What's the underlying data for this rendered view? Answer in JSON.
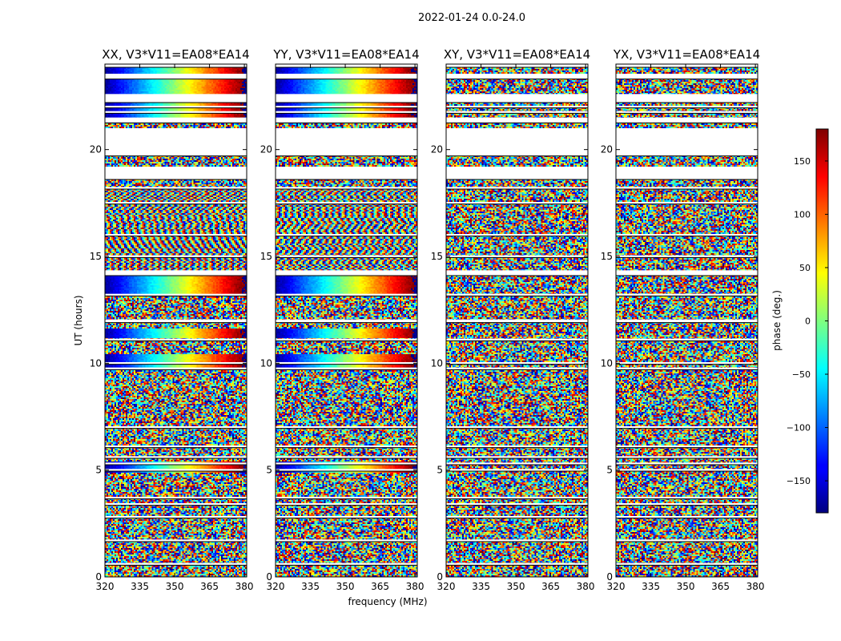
{
  "chart_data": {
    "type": "heatmap",
    "suptitle": "2022-01-24 0.0-24.0",
    "xlabel": "frequency (MHz)",
    "ylabel": "UT (hours)",
    "xlim": [
      320,
      381
    ],
    "ylim": [
      0,
      24
    ],
    "xticks": [
      320,
      335,
      350,
      365,
      380
    ],
    "yticks": [
      0,
      5,
      10,
      15,
      20
    ],
    "panels": [
      {
        "title": "XX, V3*V11=EA08*EA14",
        "correlation": "XX",
        "coherent_phase": true
      },
      {
        "title": "YY, V3*V11=EA08*EA14",
        "correlation": "YY",
        "coherent_phase": true
      },
      {
        "title": "XY, V3*V11=EA08*EA14",
        "correlation": "XY",
        "coherent_phase": false
      },
      {
        "title": "YX, V3*V11=EA08*EA14",
        "correlation": "YX",
        "coherent_phase": false
      }
    ],
    "flagged_ut_ranges": [
      [
        24.0,
        23.85
      ],
      [
        23.55,
        23.3
      ],
      [
        22.6,
        22.2
      ],
      [
        22.05,
        21.95
      ],
      [
        21.8,
        21.7
      ],
      [
        21.5,
        21.25
      ],
      [
        21.0,
        19.7
      ],
      [
        19.2,
        18.6
      ],
      [
        18.25,
        18.15
      ],
      [
        17.55,
        17.45
      ],
      [
        16.05,
        15.95
      ],
      [
        15.05,
        14.95
      ],
      [
        14.35,
        14.1
      ],
      [
        13.25,
        13.15
      ],
      [
        12.05,
        11.9
      ],
      [
        11.15,
        11.05
      ],
      [
        10.05,
        9.95
      ],
      [
        9.8,
        9.7
      ],
      [
        7.05,
        6.95
      ],
      [
        6.15,
        6.05
      ],
      [
        5.65,
        5.55
      ],
      [
        5.35,
        5.25
      ],
      [
        5.05,
        4.95
      ],
      [
        3.75,
        3.65
      ],
      [
        3.45,
        3.35
      ],
      [
        2.85,
        2.75
      ],
      [
        1.75,
        1.65
      ],
      [
        0.65,
        0.55
      ]
    ],
    "colorbar": {
      "label": "phase (deg.)",
      "range": [
        -180,
        180
      ],
      "ticks": [
        150,
        100,
        50,
        0,
        -50,
        -100,
        -150
      ],
      "tick_labels": [
        "150",
        "100",
        "50",
        "0",
        "−50",
        "−100",
        "−150"
      ],
      "colormap": "jet"
    }
  }
}
